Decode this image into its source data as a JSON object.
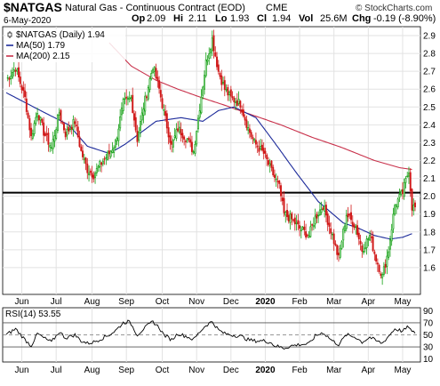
{
  "header": {
    "symbol": "$NATGAS",
    "name": "Natural Gas - Continuous Contract (EOD)",
    "exchange": "CME",
    "credit": "© StockCharts.com",
    "date": "6-May-2020",
    "stats": [
      {
        "label": "Op",
        "value": "2.09"
      },
      {
        "label": "Hi",
        "value": "2.11"
      },
      {
        "label": "Lo",
        "value": "1.93"
      },
      {
        "label": "Cl",
        "value": "1.94"
      },
      {
        "label": "Vol",
        "value": "25.6M"
      },
      {
        "label": "Chg",
        "value": "-0.19 (-8.90%)"
      }
    ]
  },
  "colors": {
    "up": "#14a014",
    "down": "#d01818",
    "ma50": "#1c2a9a",
    "ma200": "#c8304a",
    "rsi": "#000000",
    "grid": "#e2e2e2",
    "hline": "#000000"
  },
  "chart_data": [
    {
      "type": "candlestick",
      "legend_position": "top-left",
      "legend": [
        {
          "label": "$NATGAS (Daily) 1.94",
          "symbol": "candle"
        },
        {
          "label": "MA(50) 1.79",
          "color": "#1c2a9a"
        },
        {
          "label": "MA(200) 2.15",
          "color": "#c8304a"
        }
      ],
      "ylim": [
        1.45,
        2.95
      ],
      "yticks": [
        "2.9",
        "2.8",
        "2.7",
        "2.6",
        "2.5",
        "2.4",
        "2.3",
        "2.2",
        "2.1",
        "2.0",
        "1.9",
        "1.8",
        "1.7",
        "1.6"
      ],
      "grid": true,
      "horizontal_line": 2.02,
      "x_ticks": [
        "Jun",
        "Jul",
        "Aug",
        "Sep",
        "Oct",
        "Nov",
        "Dec",
        "2020",
        "Feb",
        "Mar",
        "Apr",
        "May"
      ],
      "x_tick_positions": [
        10,
        32,
        55,
        77,
        100,
        122,
        144,
        166,
        188,
        210,
        232,
        254
      ],
      "x_range": [
        0,
        262
      ],
      "close_anchors": [
        [
          0,
          2.65
        ],
        [
          6,
          2.72
        ],
        [
          12,
          2.55
        ],
        [
          16,
          2.33
        ],
        [
          20,
          2.48
        ],
        [
          24,
          2.36
        ],
        [
          29,
          2.27
        ],
        [
          34,
          2.47
        ],
        [
          38,
          2.35
        ],
        [
          44,
          2.42
        ],
        [
          48,
          2.25
        ],
        [
          52,
          2.15
        ],
        [
          56,
          2.12
        ],
        [
          62,
          2.2
        ],
        [
          66,
          2.24
        ],
        [
          70,
          2.3
        ],
        [
          75,
          2.52
        ],
        [
          80,
          2.55
        ],
        [
          84,
          2.32
        ],
        [
          88,
          2.5
        ],
        [
          94,
          2.73
        ],
        [
          98,
          2.6
        ],
        [
          101,
          2.47
        ],
        [
          106,
          2.28
        ],
        [
          110,
          2.38
        ],
        [
          116,
          2.32
        ],
        [
          120,
          2.25
        ],
        [
          124,
          2.5
        ],
        [
          128,
          2.75
        ],
        [
          132,
          2.88
        ],
        [
          136,
          2.7
        ],
        [
          140,
          2.6
        ],
        [
          144,
          2.55
        ],
        [
          150,
          2.52
        ],
        [
          155,
          2.38
        ],
        [
          159,
          2.3
        ],
        [
          165,
          2.24
        ],
        [
          169,
          2.16
        ],
        [
          175,
          2.05
        ],
        [
          178,
          1.9
        ],
        [
          183,
          1.87
        ],
        [
          188,
          1.82
        ],
        [
          194,
          1.78
        ],
        [
          198,
          1.88
        ],
        [
          203,
          1.95
        ],
        [
          209,
          1.78
        ],
        [
          213,
          1.65
        ],
        [
          218,
          1.9
        ],
        [
          224,
          1.83
        ],
        [
          228,
          1.7
        ],
        [
          233,
          1.78
        ],
        [
          237,
          1.65
        ],
        [
          241,
          1.55
        ],
        [
          245,
          1.7
        ],
        [
          249,
          1.95
        ],
        [
          254,
          2.02
        ],
        [
          258,
          2.15
        ],
        [
          260,
          1.94
        ]
      ],
      "ma50_anchors": [
        [
          0,
          2.58
        ],
        [
          22,
          2.48
        ],
        [
          40,
          2.4
        ],
        [
          52,
          2.28
        ],
        [
          66,
          2.24
        ],
        [
          76,
          2.29
        ],
        [
          96,
          2.42
        ],
        [
          112,
          2.44
        ],
        [
          126,
          2.42
        ],
        [
          136,
          2.48
        ],
        [
          146,
          2.5
        ],
        [
          160,
          2.44
        ],
        [
          172,
          2.3
        ],
        [
          186,
          2.13
        ],
        [
          200,
          1.97
        ],
        [
          216,
          1.85
        ],
        [
          226,
          1.82
        ],
        [
          236,
          1.78
        ],
        [
          246,
          1.76
        ],
        [
          254,
          1.77
        ],
        [
          260,
          1.79
        ]
      ],
      "ma200_anchors": [
        [
          66,
          2.86
        ],
        [
          80,
          2.73
        ],
        [
          96,
          2.65
        ],
        [
          110,
          2.6
        ],
        [
          126,
          2.55
        ],
        [
          140,
          2.51
        ],
        [
          156,
          2.46
        ],
        [
          176,
          2.4
        ],
        [
          196,
          2.33
        ],
        [
          216,
          2.27
        ],
        [
          236,
          2.2
        ],
        [
          252,
          2.16
        ],
        [
          260,
          2.15
        ]
      ]
    },
    {
      "type": "line",
      "legend": [
        {
          "label": "RSI(14) 53.55"
        }
      ],
      "ylim": [
        5,
        95
      ],
      "yticks": [
        "90",
        "70",
        "50",
        "30",
        "10"
      ],
      "bands": [
        70,
        30
      ],
      "dashed_line": 50,
      "grid": true,
      "x_ticks": [
        "Jun",
        "Jul",
        "Aug",
        "Sep",
        "Oct",
        "Nov",
        "Dec",
        "2020",
        "Feb",
        "Mar",
        "Apr",
        "May"
      ],
      "rsi_anchors": [
        [
          0,
          50
        ],
        [
          6,
          60
        ],
        [
          12,
          42
        ],
        [
          16,
          32
        ],
        [
          20,
          52
        ],
        [
          24,
          45
        ],
        [
          29,
          38
        ],
        [
          34,
          55
        ],
        [
          38,
          45
        ],
        [
          44,
          50
        ],
        [
          48,
          40
        ],
        [
          52,
          36
        ],
        [
          56,
          38
        ],
        [
          62,
          45
        ],
        [
          66,
          50
        ],
        [
          70,
          57
        ],
        [
          75,
          70
        ],
        [
          78,
          72
        ],
        [
          80,
          68
        ],
        [
          84,
          50
        ],
        [
          88,
          60
        ],
        [
          94,
          72
        ],
        [
          98,
          62
        ],
        [
          101,
          50
        ],
        [
          106,
          42
        ],
        [
          110,
          52
        ],
        [
          116,
          47
        ],
        [
          120,
          42
        ],
        [
          124,
          55
        ],
        [
          128,
          66
        ],
        [
          132,
          72
        ],
        [
          136,
          58
        ],
        [
          140,
          52
        ],
        [
          144,
          50
        ],
        [
          150,
          48
        ],
        [
          155,
          42
        ],
        [
          159,
          40
        ],
        [
          165,
          40
        ],
        [
          169,
          38
        ],
        [
          172,
          32
        ],
        [
          175,
          30
        ],
        [
          178,
          28
        ],
        [
          183,
          32
        ],
        [
          188,
          34
        ],
        [
          194,
          35
        ],
        [
          198,
          48
        ],
        [
          203,
          54
        ],
        [
          209,
          40
        ],
        [
          213,
          34
        ],
        [
          218,
          50
        ],
        [
          224,
          46
        ],
        [
          228,
          38
        ],
        [
          233,
          46
        ],
        [
          237,
          40
        ],
        [
          241,
          36
        ],
        [
          245,
          48
        ],
        [
          249,
          60
        ],
        [
          254,
          56
        ],
        [
          258,
          64
        ],
        [
          260,
          54
        ]
      ]
    }
  ]
}
